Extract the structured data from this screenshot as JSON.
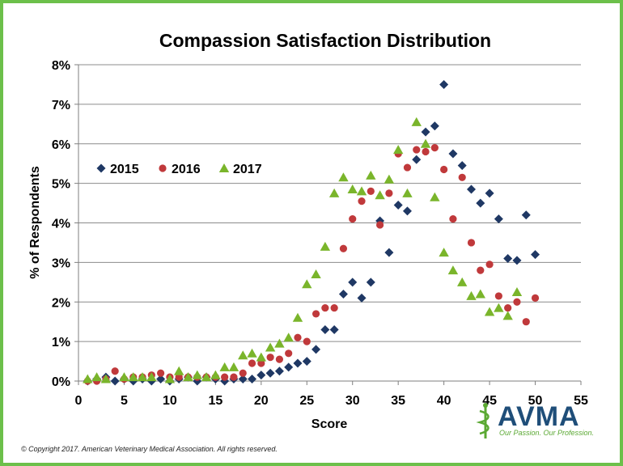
{
  "chart_data": {
    "type": "scatter",
    "title": "Compassion Satisfaction Distribution",
    "xlabel": "Score",
    "ylabel": "% of Respondents",
    "xlim": [
      0,
      55
    ],
    "ylim": [
      0,
      8
    ],
    "xticks": [
      0,
      5,
      10,
      15,
      20,
      25,
      30,
      35,
      40,
      45,
      50,
      55
    ],
    "yticks": [
      0,
      1,
      2,
      3,
      4,
      5,
      6,
      7,
      8
    ],
    "ytick_labels": [
      "0%",
      "1%",
      "2%",
      "3%",
      "4%",
      "5%",
      "6%",
      "7%",
      "8%"
    ],
    "legend_position": "left-middle",
    "series": [
      {
        "name": "2015",
        "marker": "diamond",
        "color": "#1f3864",
        "points": [
          [
            1,
            0.0
          ],
          [
            2,
            0.05
          ],
          [
            3,
            0.1
          ],
          [
            4,
            0.0
          ],
          [
            5,
            0.05
          ],
          [
            6,
            0.0
          ],
          [
            7,
            0.05
          ],
          [
            8,
            0.0
          ],
          [
            9,
            0.05
          ],
          [
            10,
            0.0
          ],
          [
            11,
            0.05
          ],
          [
            12,
            0.1
          ],
          [
            13,
            0.0
          ],
          [
            14,
            0.1
          ],
          [
            15,
            0.05
          ],
          [
            16,
            0.0
          ],
          [
            17,
            0.05
          ],
          [
            18,
            0.05
          ],
          [
            19,
            0.05
          ],
          [
            20,
            0.15
          ],
          [
            21,
            0.2
          ],
          [
            22,
            0.25
          ],
          [
            23,
            0.35
          ],
          [
            24,
            0.45
          ],
          [
            25,
            0.5
          ],
          [
            26,
            0.8
          ],
          [
            27,
            1.3
          ],
          [
            28,
            1.3
          ],
          [
            29,
            2.2
          ],
          [
            30,
            2.5
          ],
          [
            31,
            2.1
          ],
          [
            32,
            2.5
          ],
          [
            33,
            4.05
          ],
          [
            34,
            3.25
          ],
          [
            35,
            4.45
          ],
          [
            36,
            4.3
          ],
          [
            37,
            5.6
          ],
          [
            38,
            6.3
          ],
          [
            39,
            6.45
          ],
          [
            40,
            7.5
          ],
          [
            41,
            5.75
          ],
          [
            42,
            5.45
          ],
          [
            43,
            4.85
          ],
          [
            44,
            4.5
          ],
          [
            45,
            4.75
          ],
          [
            46,
            4.1
          ],
          [
            47,
            3.1
          ],
          [
            48,
            3.05
          ],
          [
            49,
            4.2
          ],
          [
            50,
            3.2
          ]
        ]
      },
      {
        "name": "2016",
        "marker": "circle",
        "color": "#c0393b",
        "points": [
          [
            1,
            0.0
          ],
          [
            2,
            0.0
          ],
          [
            3,
            0.05
          ],
          [
            4,
            0.25
          ],
          [
            5,
            0.05
          ],
          [
            6,
            0.1
          ],
          [
            7,
            0.1
          ],
          [
            8,
            0.15
          ],
          [
            9,
            0.2
          ],
          [
            10,
            0.1
          ],
          [
            11,
            0.1
          ],
          [
            12,
            0.1
          ],
          [
            13,
            0.1
          ],
          [
            14,
            0.1
          ],
          [
            15,
            0.1
          ],
          [
            16,
            0.1
          ],
          [
            17,
            0.1
          ],
          [
            18,
            0.2
          ],
          [
            19,
            0.45
          ],
          [
            20,
            0.45
          ],
          [
            21,
            0.6
          ],
          [
            22,
            0.55
          ],
          [
            23,
            0.7
          ],
          [
            24,
            1.1
          ],
          [
            25,
            1.0
          ],
          [
            26,
            1.7
          ],
          [
            27,
            1.85
          ],
          [
            28,
            1.85
          ],
          [
            29,
            3.35
          ],
          [
            30,
            4.1
          ],
          [
            31,
            4.55
          ],
          [
            32,
            4.8
          ],
          [
            33,
            3.95
          ],
          [
            34,
            4.75
          ],
          [
            35,
            5.75
          ],
          [
            36,
            5.4
          ],
          [
            37,
            5.85
          ],
          [
            38,
            5.8
          ],
          [
            39,
            5.9
          ],
          [
            40,
            5.35
          ],
          [
            41,
            4.1
          ],
          [
            42,
            5.15
          ],
          [
            43,
            3.5
          ],
          [
            44,
            2.8
          ],
          [
            45,
            2.95
          ],
          [
            46,
            2.15
          ],
          [
            47,
            1.85
          ],
          [
            48,
            2.0
          ],
          [
            49,
            1.5
          ],
          [
            50,
            2.1
          ]
        ]
      },
      {
        "name": "2017",
        "marker": "triangle",
        "color": "#7ab52b",
        "points": [
          [
            1,
            0.05
          ],
          [
            2,
            0.1
          ],
          [
            3,
            0.05
          ],
          [
            5,
            0.1
          ],
          [
            6,
            0.1
          ],
          [
            7,
            0.1
          ],
          [
            8,
            0.1
          ],
          [
            10,
            0.05
          ],
          [
            11,
            0.25
          ],
          [
            12,
            0.1
          ],
          [
            13,
            0.15
          ],
          [
            14,
            0.1
          ],
          [
            15,
            0.15
          ],
          [
            16,
            0.35
          ],
          [
            17,
            0.35
          ],
          [
            18,
            0.65
          ],
          [
            19,
            0.7
          ],
          [
            20,
            0.6
          ],
          [
            21,
            0.85
          ],
          [
            22,
            0.95
          ],
          [
            23,
            1.1
          ],
          [
            24,
            1.6
          ],
          [
            25,
            2.45
          ],
          [
            26,
            2.7
          ],
          [
            27,
            3.4
          ],
          [
            28,
            4.75
          ],
          [
            29,
            5.15
          ],
          [
            30,
            4.85
          ],
          [
            31,
            4.8
          ],
          [
            32,
            5.2
          ],
          [
            33,
            4.7
          ],
          [
            34,
            5.1
          ],
          [
            35,
            5.85
          ],
          [
            36,
            4.75
          ],
          [
            37,
            6.55
          ],
          [
            38,
            6.0
          ],
          [
            39,
            4.65
          ],
          [
            40,
            3.25
          ],
          [
            41,
            2.8
          ],
          [
            42,
            2.5
          ],
          [
            43,
            2.15
          ],
          [
            44,
            2.2
          ],
          [
            45,
            1.75
          ],
          [
            46,
            1.85
          ],
          [
            47,
            1.65
          ],
          [
            48,
            2.25
          ]
        ]
      }
    ]
  },
  "footer": {
    "copyright": "© Copyright 2017. American Veterinary Medical Association. All rights reserved."
  },
  "logo": {
    "name": "AVMA",
    "tagline": "Our Passion. Our Profession."
  }
}
